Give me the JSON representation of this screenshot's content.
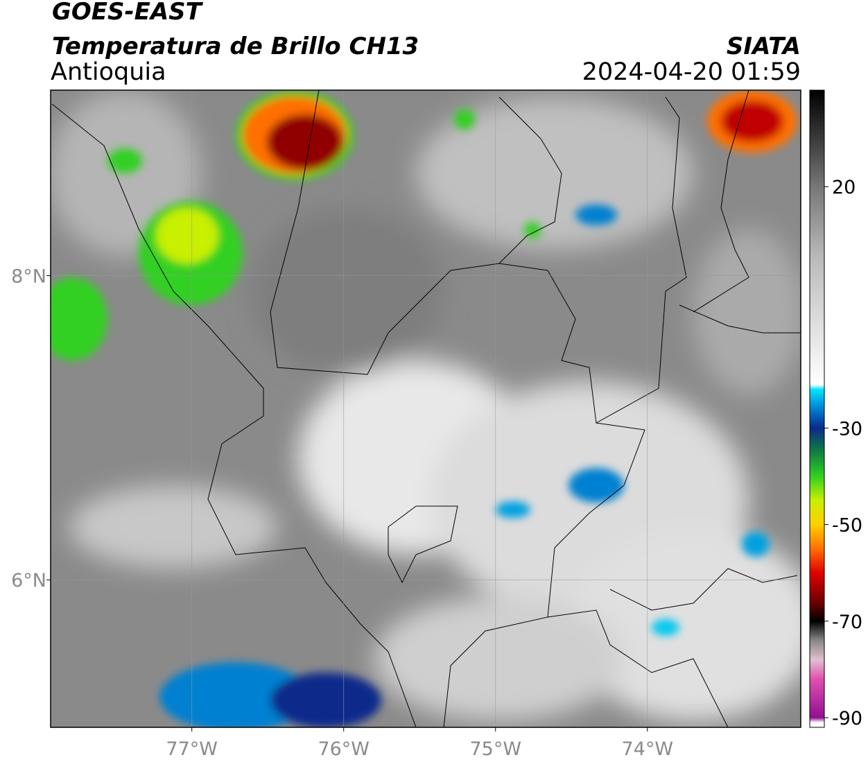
{
  "header": {
    "title": "GOES-EAST",
    "subtitle": "Temperatura de Brillo CH13",
    "region": "Antioquia",
    "source": "SIATA",
    "datetime": "2024-04-20 01:59"
  },
  "map": {
    "lon_range": [
      -77.93,
      -72.99
    ],
    "lat_range": [
      5.03,
      9.22
    ],
    "lon_ticks": [
      {
        "value": -77,
        "label": "77°W"
      },
      {
        "value": -76,
        "label": "76°W"
      },
      {
        "value": -75,
        "label": "75°W"
      },
      {
        "value": -74,
        "label": "74°W"
      }
    ],
    "lat_ticks": [
      {
        "value": 8,
        "label": "8°N"
      },
      {
        "value": 6,
        "label": "6°N"
      }
    ],
    "grid": true,
    "background": "#8a8a8a"
  },
  "colorbar": {
    "range": [
      40,
      -92
    ],
    "ticks": [
      20,
      -30,
      -50,
      -70,
      -90
    ],
    "colormap": [
      {
        "value": 40,
        "color": "#000000"
      },
      {
        "value": 30,
        "color": "#3a3a3a"
      },
      {
        "value": 20,
        "color": "#777777"
      },
      {
        "value": 5,
        "color": "#bbbbbb"
      },
      {
        "value": -21,
        "color": "#ffffff"
      },
      {
        "value": -22,
        "color": "#00e5ff"
      },
      {
        "value": -26,
        "color": "#0080d0"
      },
      {
        "value": -30,
        "color": "#0a2a8a"
      },
      {
        "value": -35,
        "color": "#108040"
      },
      {
        "value": -40,
        "color": "#30d020"
      },
      {
        "value": -45,
        "color": "#c8f000"
      },
      {
        "value": -50,
        "color": "#ffd000"
      },
      {
        "value": -55,
        "color": "#ff7000"
      },
      {
        "value": -60,
        "color": "#e00000"
      },
      {
        "value": -66,
        "color": "#700000"
      },
      {
        "value": -70,
        "color": "#000000"
      },
      {
        "value": -74,
        "color": "#888888"
      },
      {
        "value": -78,
        "color": "#e0c0d0"
      },
      {
        "value": -82,
        "color": "#e050b0"
      },
      {
        "value": -90,
        "color": "#901090"
      },
      {
        "value": -91,
        "color": "#ffffff"
      }
    ]
  }
}
